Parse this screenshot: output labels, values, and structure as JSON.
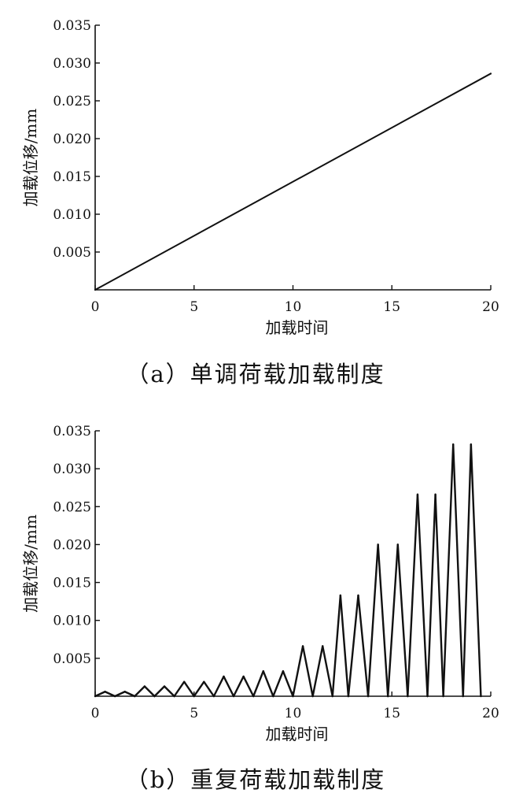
{
  "chart_data": [
    {
      "type": "line",
      "caption": "（a）单调荷载加载制度",
      "xlabel": "加载时间",
      "ylabel": "加载位移/mm",
      "xlim": [
        0,
        20
      ],
      "ylim": [
        0,
        0.035
      ],
      "x_ticks": [
        "0",
        "5",
        "10",
        "15",
        "20"
      ],
      "y_ticks": [
        "0.005",
        "0.010",
        "0.015",
        "0.020",
        "0.025",
        "0.030",
        "0.035"
      ],
      "grid": false,
      "series": [
        {
          "x": [
            0,
            20
          ],
          "y": [
            0,
            0.0286
          ]
        }
      ]
    },
    {
      "type": "line",
      "caption": "（b）重复荷载加载制度",
      "xlabel": "加载时间",
      "ylabel": "加载位移/mm",
      "xlim": [
        0,
        20
      ],
      "ylim": [
        0,
        0.035
      ],
      "x_ticks": [
        "0",
        "5",
        "10",
        "15",
        "20"
      ],
      "y_ticks": [
        "0.005",
        "0.010",
        "0.015",
        "0.020",
        "0.025",
        "0.030",
        "0.035"
      ],
      "grid": false,
      "series": [
        {
          "x": [
            0,
            0.5,
            1.0,
            1.5,
            2.0,
            2.5,
            3.0,
            3.5,
            4.0,
            4.5,
            5.0,
            5.5,
            6.0,
            6.5,
            7.0,
            7.5,
            8.0,
            8.5,
            9.0,
            9.5,
            10.0,
            10.5,
            11.0,
            11.5,
            12.0,
            12.4,
            12.8,
            13.3,
            13.8,
            14.3,
            14.8,
            15.3,
            15.8,
            16.3,
            16.8,
            17.2,
            17.6,
            18.1,
            18.6,
            19.0,
            19.5
          ],
          "y": [
            0,
            0.0006,
            0,
            0.0006,
            0,
            0.0013,
            0,
            0.0013,
            0,
            0.0019,
            0,
            0.0019,
            0,
            0.0026,
            0,
            0.0026,
            0,
            0.0033,
            0,
            0.0033,
            0,
            0.0066,
            0,
            0.0066,
            0,
            0.0133,
            0,
            0.0133,
            0,
            0.02,
            0,
            0.02,
            0,
            0.0266,
            0,
            0.0266,
            0,
            0.0332,
            0,
            0.0332,
            0
          ]
        }
      ]
    }
  ]
}
